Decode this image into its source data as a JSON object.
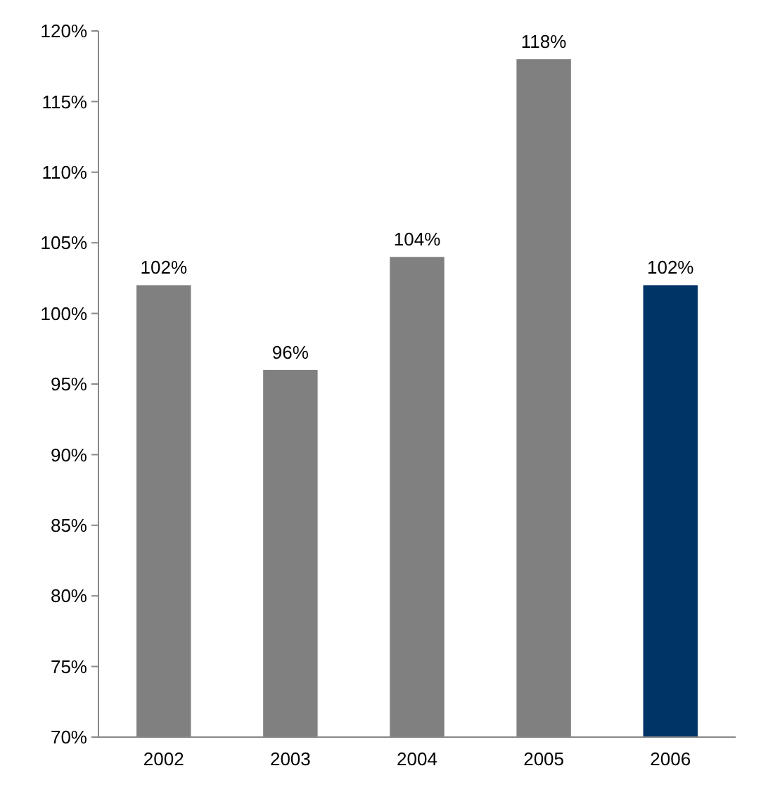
{
  "chart_data": {
    "type": "bar",
    "categories": [
      "2002",
      "2003",
      "2004",
      "2005",
      "2006"
    ],
    "values": [
      102,
      96,
      104,
      118,
      102
    ],
    "colors": [
      "#808080",
      "#808080",
      "#808080",
      "#808080",
      "#003366"
    ],
    "value_labels": [
      "102%",
      "96%",
      "104%",
      "118%",
      "102%"
    ],
    "ylim": [
      70,
      120
    ],
    "yticks": [
      {
        "value": 70,
        "label": "70%"
      },
      {
        "value": 75,
        "label": "75%"
      },
      {
        "value": 80,
        "label": "80%"
      },
      {
        "value": 85,
        "label": "85%"
      },
      {
        "value": 90,
        "label": "90%"
      },
      {
        "value": 95,
        "label": "95%"
      },
      {
        "value": 100,
        "label": "100%"
      },
      {
        "value": 105,
        "label": "105%"
      },
      {
        "value": 110,
        "label": "110%"
      },
      {
        "value": 115,
        "label": "115%"
      },
      {
        "value": 120,
        "label": "120%"
      }
    ],
    "grid": false
  }
}
